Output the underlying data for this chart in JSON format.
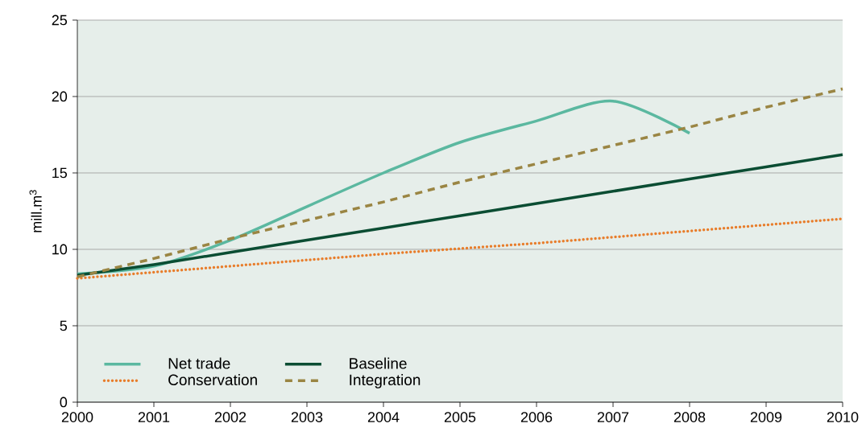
{
  "chart_data": {
    "type": "line",
    "ylabel": "mill.m$^{3}$",
    "x": [
      2000,
      2001,
      2002,
      2003,
      2004,
      2005,
      2006,
      2007,
      2008,
      2009,
      2010
    ],
    "series": [
      {
        "name": "Net trade",
        "color": "#5bb8a0",
        "line_style": "solid",
        "values": [
          8.4,
          8.9,
          10.6,
          12.8,
          15.0,
          17.0,
          18.4,
          19.7,
          17.6,
          null,
          null
        ]
      },
      {
        "name": "Baseline",
        "color": "#0b4d33",
        "line_style": "solid",
        "values": [
          8.3,
          9.0,
          9.8,
          10.6,
          11.4,
          12.2,
          13.0,
          13.8,
          14.6,
          15.4,
          16.2
        ]
      },
      {
        "name": "Conservation",
        "color": "#e87d2b",
        "line_style": "dotted",
        "values": [
          8.1,
          8.5,
          8.9,
          9.3,
          9.7,
          10.05,
          10.4,
          10.8,
          11.2,
          11.6,
          12.0
        ]
      },
      {
        "name": "Integration",
        "color": "#9a8543",
        "line_style": "dashed",
        "values": [
          8.2,
          9.4,
          10.7,
          11.9,
          13.1,
          14.4,
          15.6,
          16.8,
          18.0,
          19.3,
          20.5
        ]
      }
    ],
    "xlim": [
      2000,
      2010
    ],
    "xticks": [
      2000,
      2001,
      2002,
      2003,
      2004,
      2005,
      2006,
      2007,
      2008,
      2009,
      2010
    ],
    "ylim": [
      0,
      25
    ],
    "yticks": [
      0,
      5,
      10,
      15,
      20,
      25
    ],
    "grid": "y",
    "legend": "bottom left",
    "marker": "none"
  }
}
